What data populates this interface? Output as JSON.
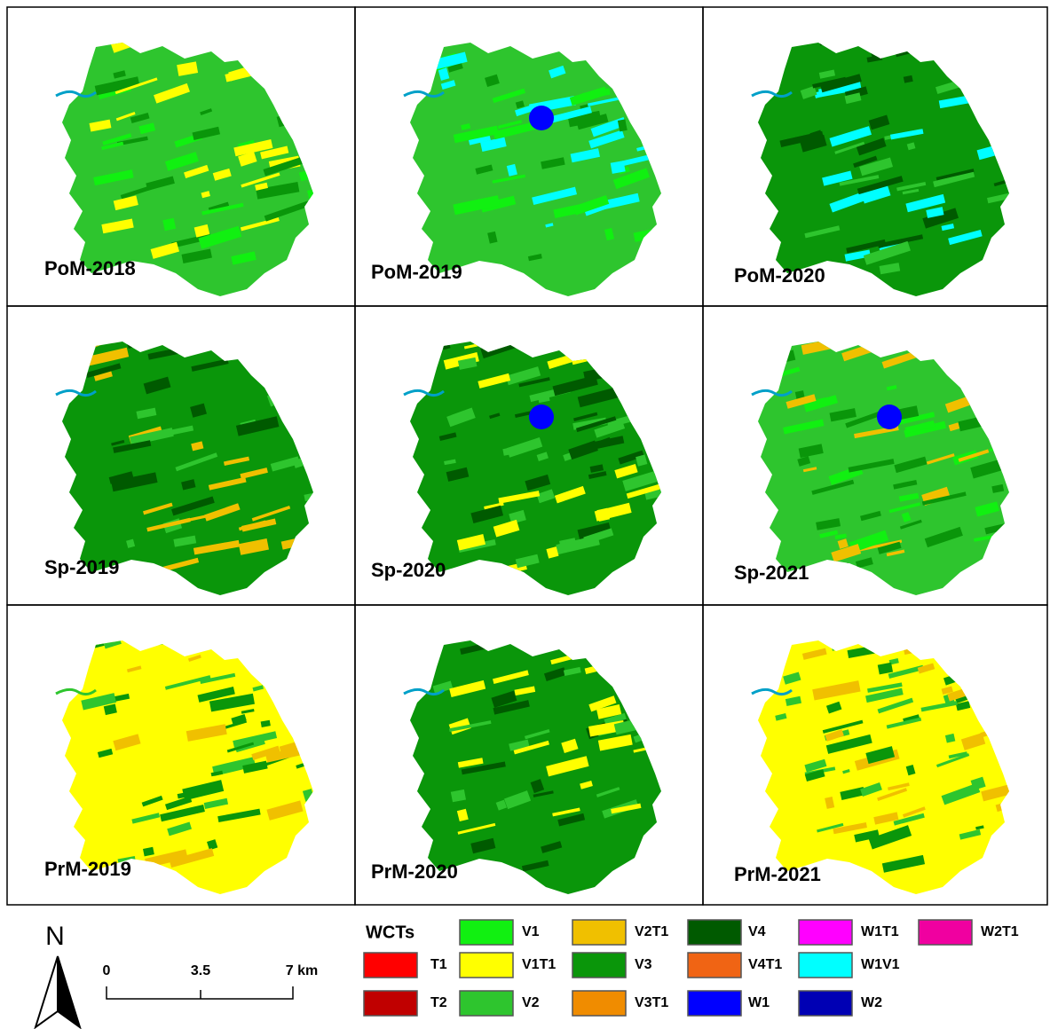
{
  "panels": [
    {
      "label": "PoM-2018"
    },
    {
      "label": "PoM-2019"
    },
    {
      "label": "PoM-2020"
    },
    {
      "label": "Sp-2019"
    },
    {
      "label": "Sp-2020"
    },
    {
      "label": "Sp-2021"
    },
    {
      "label": "PrM-2019"
    },
    {
      "label": "PrM-2020"
    },
    {
      "label": "PrM-2021"
    }
  ],
  "legend": {
    "title": "WCTs",
    "items": [
      {
        "name": "T1",
        "color": "#ff0000"
      },
      {
        "name": "T2",
        "color": "#c00000"
      },
      {
        "name": "V1",
        "color": "#11f011"
      },
      {
        "name": "V1T1",
        "color": "#ffff00"
      },
      {
        "name": "V2",
        "color": "#2ec52e"
      },
      {
        "name": "V2T1",
        "color": "#f0c000"
      },
      {
        "name": "V3",
        "color": "#0a960a"
      },
      {
        "name": "V3T1",
        "color": "#f08c00"
      },
      {
        "name": "V4",
        "color": "#005a00"
      },
      {
        "name": "V4T1",
        "color": "#f06414"
      },
      {
        "name": "W1",
        "color": "#0000ff"
      },
      {
        "name": "W1T1",
        "color": "#ff00ff"
      },
      {
        "name": "W1V1",
        "color": "#00ffff"
      },
      {
        "name": "W2",
        "color": "#0000b4"
      },
      {
        "name": "W2T1",
        "color": "#f000a0"
      }
    ]
  },
  "north_arrow": "N",
  "scale_bar": [
    "0",
    "3.5",
    "7 km"
  ]
}
